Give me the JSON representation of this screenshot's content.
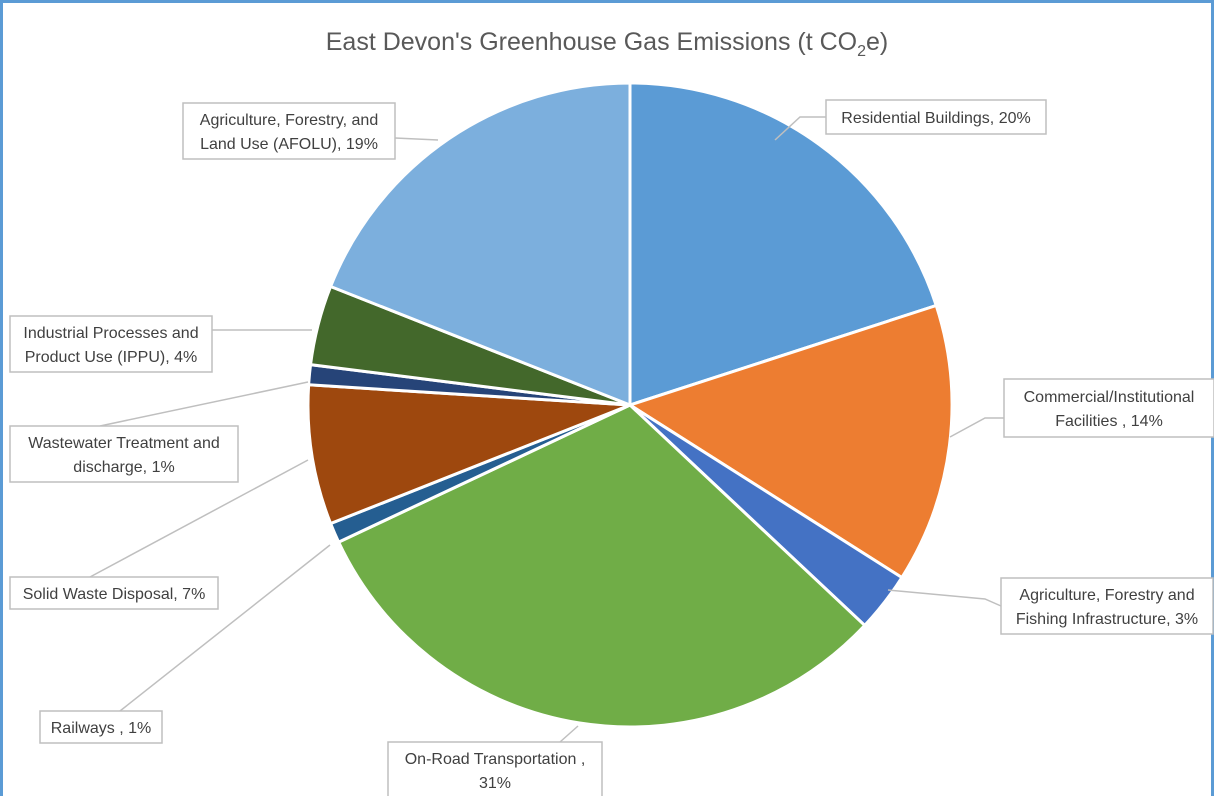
{
  "chart_data": {
    "type": "pie",
    "title": "East Devon's Greenhouse Gas Emissions (t CO",
    "title_sub": "2",
    "title_tail": "e)",
    "slices": [
      {
        "name": "Residential Buildings",
        "value": 20,
        "label_lines": [
          "Residential Buildings, 20%"
        ],
        "color": "#5b9bd5"
      },
      {
        "name": "Commercial/Institutional Facilities",
        "value": 14,
        "label_lines": [
          "Commercial/Institutional",
          "Facilities , 14%"
        ],
        "color": "#ed7d31"
      },
      {
        "name": "Agriculture, Forestry and Fishing Infrastructure",
        "value": 3,
        "label_lines": [
          "Agriculture, Forestry and",
          "Fishing Infrastructure, 3%"
        ],
        "color": "#4472c4"
      },
      {
        "name": "On-Road Transportation",
        "value": 31,
        "label_lines": [
          "On-Road Transportation ,",
          "31%"
        ],
        "color": "#70ad47"
      },
      {
        "name": "Railways",
        "value": 1,
        "label_lines": [
          "Railways , 1%"
        ],
        "color": "#255e91"
      },
      {
        "name": "Solid Waste Disposal",
        "value": 7,
        "label_lines": [
          "Solid Waste Disposal, 7%"
        ],
        "color": "#9e480e"
      },
      {
        "name": "Wastewater Treatment and discharge",
        "value": 1,
        "label_lines": [
          "Wastewater Treatment and",
          "discharge, 1%"
        ],
        "color": "#264478"
      },
      {
        "name": "Industrial Processes and Product Use (IPPU)",
        "value": 4,
        "label_lines": [
          "Industrial Processes and",
          "Product Use (IPPU), 4%"
        ],
        "color": "#43682b"
      },
      {
        "name": "Agriculture, Forestry, and Land Use (AFOLU)",
        "value": 19,
        "label_lines": [
          "Agriculture, Forestry, and",
          "Land Use (AFOLU), 19%"
        ],
        "color": "#7cafdd"
      }
    ]
  }
}
